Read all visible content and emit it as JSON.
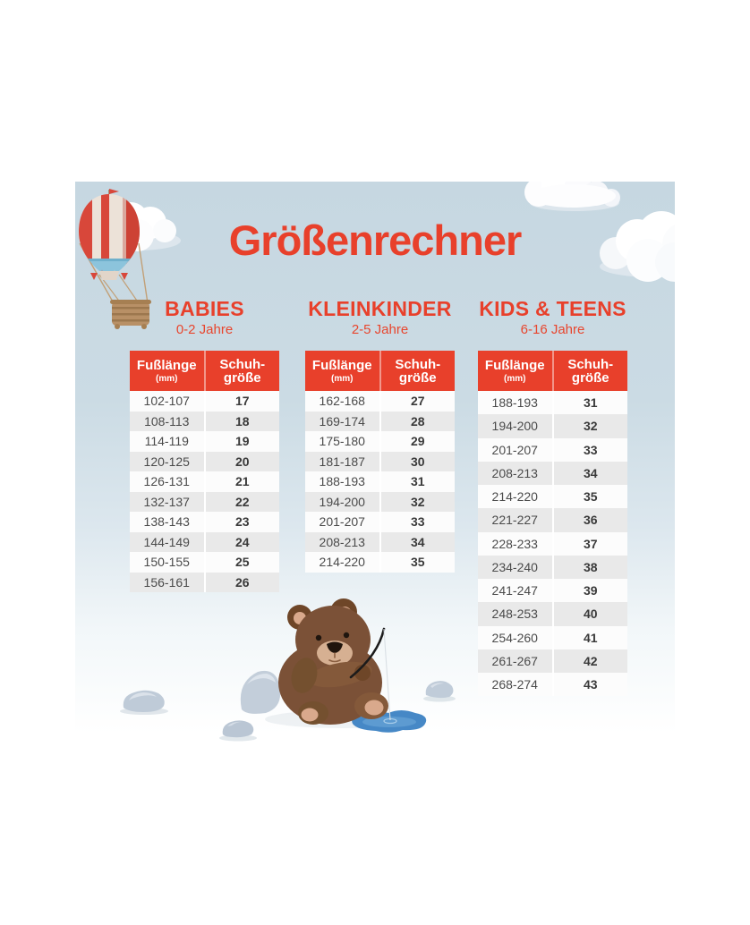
{
  "title": "Größenrechner",
  "table_header": {
    "foot": "Fußlänge",
    "unit": "(mm)",
    "size_line1": "Schuh-",
    "size_line2": "größe"
  },
  "colors": {
    "accent_red": "#e8402b",
    "card_background": "#c9dae3",
    "row_alt_gray": "#e9e9e9",
    "text_dark": "#3a3a3a",
    "puddle_blue": "#4688c6"
  },
  "illustrations": {
    "balloon": "hot-air-balloon",
    "clouds": "clouds",
    "bear": "bear-fishing",
    "rocks": "rocks",
    "puddle": "water-puddle"
  },
  "chart_data": [
    {
      "type": "table",
      "title": "BABIES",
      "subtitle": "0-2 Jahre",
      "columns": [
        "Fußlänge (mm)",
        "Schuhgröße"
      ],
      "rows": [
        [
          "102-107",
          "17"
        ],
        [
          "108-113",
          "18"
        ],
        [
          "114-119",
          "19"
        ],
        [
          "120-125",
          "20"
        ],
        [
          "126-131",
          "21"
        ],
        [
          "132-137",
          "22"
        ],
        [
          "138-143",
          "23"
        ],
        [
          "144-149",
          "24"
        ],
        [
          "150-155",
          "25"
        ],
        [
          "156-161",
          "26"
        ]
      ]
    },
    {
      "type": "table",
      "title": "KLEINKINDER",
      "subtitle": "2-5 Jahre",
      "columns": [
        "Fußlänge (mm)",
        "Schuhgröße"
      ],
      "rows": [
        [
          "162-168",
          "27"
        ],
        [
          "169-174",
          "28"
        ],
        [
          "175-180",
          "29"
        ],
        [
          "181-187",
          "30"
        ],
        [
          "188-193",
          "31"
        ],
        [
          "194-200",
          "32"
        ],
        [
          "201-207",
          "33"
        ],
        [
          "208-213",
          "34"
        ],
        [
          "214-220",
          "35"
        ]
      ]
    },
    {
      "type": "table",
      "title": "KIDS & TEENS",
      "subtitle": "6-16 Jahre",
      "columns": [
        "Fußlänge (mm)",
        "Schuhgröße"
      ],
      "rows": [
        [
          "188-193",
          "31"
        ],
        [
          "194-200",
          "32"
        ],
        [
          "201-207",
          "33"
        ],
        [
          "208-213",
          "34"
        ],
        [
          "214-220",
          "35"
        ],
        [
          "221-227",
          "36"
        ],
        [
          "228-233",
          "37"
        ],
        [
          "234-240",
          "38"
        ],
        [
          "241-247",
          "39"
        ],
        [
          "248-253",
          "40"
        ],
        [
          "254-260",
          "41"
        ],
        [
          "261-267",
          "42"
        ],
        [
          "268-274",
          "43"
        ]
      ]
    }
  ]
}
